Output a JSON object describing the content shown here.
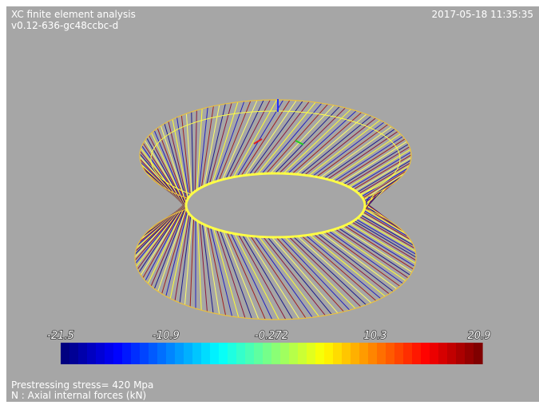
{
  "header": {
    "title": "XC finite element analysis",
    "version": "v0.12-636-gc48ccbc-d",
    "timestamp": "2017-05-18 11:35:35"
  },
  "color_bar": {
    "labels": [
      "-21.5",
      "-10.9",
      "-0.272",
      "10.3",
      "20.9"
    ]
  },
  "footer": {
    "lines": [
      "Prestressing stress= 420 Mpa",
      "N : Axial internal forces (kN)"
    ]
  }
}
